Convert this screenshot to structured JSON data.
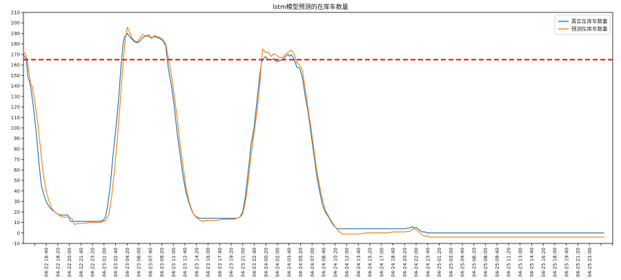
{
  "chart_data": {
    "type": "line",
    "title": "lstm模型预测的在库车数量",
    "xlabel": "",
    "ylabel": "",
    "ylim": [
      -10,
      210
    ],
    "yticks": [
      -10,
      0,
      10,
      20,
      30,
      40,
      50,
      60,
      70,
      80,
      90,
      100,
      110,
      120,
      130,
      140,
      150,
      160,
      170,
      180,
      190,
      200,
      210
    ],
    "x_tick_labels": [
      "04-22 16:40",
      "04-22 18:20",
      "04-22 20:00",
      "04-22 21:40",
      "04-22 23:20",
      "04-23 01:00",
      "04-23 02:40",
      "04-23 04:20",
      "04-23 06:00",
      "04-23 07:40",
      "04-23 09:20",
      "04-23 11:00",
      "04-23 12:40",
      "04-23 14:20",
      "04-23 16:00",
      "04-23 17:40",
      "04-23 19:20",
      "04-23 21:00",
      "04-23 22:40",
      "04-24 00:20",
      "04-24 02:00",
      "04-24 03:40",
      "04-24 05:20",
      "04-24 07:00",
      "04-24 08:40",
      "04-24 10:20",
      "04-24 12:00",
      "04-24 13:40",
      "04-24 15:20",
      "04-24 17:00",
      "04-24 18:40",
      "04-24 20:20",
      "04-24 22:00",
      "04-24 23:40",
      "04-25 01:20",
      "04-25 03:00",
      "04-25 04:40",
      "04-25 06:20",
      "04-25 08:00",
      "04-25 09:40",
      "04-25 11:20",
      "04-25 13:00",
      "04-25 14:40",
      "04-25 16:20",
      "04-25 18:00",
      "04-25 19:40",
      "04-25 21:20",
      "04-25 23:00"
    ],
    "reference_line": {
      "y": 165,
      "color": "#ff0000",
      "style": "dashed"
    },
    "legend": {
      "placement": "top-right",
      "entries": [
        "真实在库车数量",
        "预测在库车数量"
      ]
    },
    "grid": false,
    "series": [
      {
        "name": "真实在库车数量",
        "color": "#1f77b4",
        "points": [
          [
            0,
            170
          ],
          [
            1,
            165
          ],
          [
            1.6,
            148
          ],
          [
            2,
            145
          ],
          [
            2.5,
            140
          ],
          [
            3.5,
            120
          ],
          [
            4.5,
            95
          ],
          [
            5.5,
            65
          ],
          [
            6.3,
            45
          ],
          [
            7,
            38
          ],
          [
            8,
            30
          ],
          [
            9,
            25
          ],
          [
            10,
            22
          ],
          [
            11,
            20
          ],
          [
            12,
            18
          ],
          [
            13,
            17
          ],
          [
            14,
            17
          ],
          [
            15,
            17
          ],
          [
            15.6,
            17
          ],
          [
            16,
            15
          ],
          [
            16.5,
            11
          ],
          [
            17,
            11
          ],
          [
            19,
            11
          ],
          [
            21,
            11
          ],
          [
            23,
            11
          ],
          [
            25,
            11
          ],
          [
            27,
            11
          ],
          [
            28,
            12
          ],
          [
            28.8,
            15
          ],
          [
            29.5,
            25
          ],
          [
            30.5,
            45
          ],
          [
            31.5,
            75
          ],
          [
            32.5,
            100
          ],
          [
            33.5,
            130
          ],
          [
            34.3,
            160
          ],
          [
            35,
            180
          ],
          [
            35.5,
            187
          ],
          [
            36,
            188
          ],
          [
            36.5,
            190
          ],
          [
            37,
            188
          ],
          [
            38,
            185
          ],
          [
            39,
            182
          ],
          [
            40,
            181
          ],
          [
            41,
            183
          ],
          [
            42,
            186
          ],
          [
            43,
            188
          ],
          [
            44,
            187
          ],
          [
            45,
            186
          ],
          [
            46,
            187
          ],
          [
            47,
            186
          ],
          [
            48,
            185
          ],
          [
            49,
            183
          ],
          [
            50,
            178
          ],
          [
            50.5,
            165
          ],
          [
            51,
            155
          ],
          [
            52,
            140
          ],
          [
            53,
            120
          ],
          [
            54,
            95
          ],
          [
            55,
            75
          ],
          [
            56,
            55
          ],
          [
            57,
            40
          ],
          [
            58,
            30
          ],
          [
            59,
            22
          ],
          [
            60,
            17
          ],
          [
            61,
            15
          ],
          [
            62,
            14
          ],
          [
            64,
            14
          ],
          [
            66,
            14
          ],
          [
            68,
            14
          ],
          [
            70,
            14
          ],
          [
            72,
            14
          ],
          [
            74,
            14
          ],
          [
            75,
            14
          ],
          [
            76,
            15
          ],
          [
            77,
            20
          ],
          [
            78,
            35
          ],
          [
            79,
            60
          ],
          [
            80,
            85
          ],
          [
            81,
            100
          ],
          [
            82,
            125
          ],
          [
            83,
            150
          ],
          [
            83.6,
            162
          ],
          [
            84,
            165
          ],
          [
            85,
            168
          ],
          [
            86,
            165
          ],
          [
            87,
            165
          ],
          [
            88,
            166
          ],
          [
            89,
            163
          ],
          [
            90,
            164
          ],
          [
            91,
            165
          ],
          [
            92,
            168
          ],
          [
            93,
            170
          ],
          [
            93.5,
            168
          ],
          [
            94,
            170
          ],
          [
            94.5,
            168
          ],
          [
            95,
            166
          ],
          [
            96,
            158
          ],
          [
            97,
            157
          ],
          [
            98,
            148
          ],
          [
            99,
            130
          ],
          [
            100,
            115
          ],
          [
            101,
            95
          ],
          [
            102,
            75
          ],
          [
            103,
            55
          ],
          [
            104,
            40
          ],
          [
            105,
            27
          ],
          [
            106,
            20
          ],
          [
            107,
            16
          ],
          [
            108,
            11
          ],
          [
            109,
            7
          ],
          [
            109.8,
            5
          ],
          [
            110,
            4
          ],
          [
            112,
            4
          ],
          [
            114,
            4
          ],
          [
            116,
            4
          ],
          [
            118,
            4
          ],
          [
            120,
            4
          ],
          [
            122,
            4
          ],
          [
            124,
            4
          ],
          [
            126,
            4
          ],
          [
            128,
            4
          ],
          [
            130,
            4
          ],
          [
            132,
            4
          ],
          [
            134,
            4
          ],
          [
            136,
            5
          ],
          [
            136.5,
            6
          ],
          [
            137,
            5
          ],
          [
            138,
            5
          ],
          [
            139,
            3
          ],
          [
            140,
            1
          ],
          [
            141,
            1
          ],
          [
            142,
            0
          ],
          [
            144,
            0
          ],
          [
            148,
            0
          ],
          [
            152,
            0
          ],
          [
            156,
            0
          ],
          [
            160,
            0
          ],
          [
            164,
            0
          ],
          [
            168,
            0
          ],
          [
            172,
            0
          ],
          [
            176,
            0
          ],
          [
            180,
            0
          ],
          [
            184,
            0
          ],
          [
            188,
            0
          ],
          [
            192,
            0
          ],
          [
            196,
            0
          ],
          [
            200,
            0
          ],
          [
            204,
            0
          ]
        ]
      },
      {
        "name": "预测在库车数量",
        "color": "#ff7f0e",
        "points": [
          [
            0,
            173
          ],
          [
            1,
            169
          ],
          [
            2,
            152
          ],
          [
            2.5,
            142
          ],
          [
            3,
            140
          ],
          [
            4,
            125
          ],
          [
            5,
            105
          ],
          [
            6,
            80
          ],
          [
            7,
            55
          ],
          [
            8,
            40
          ],
          [
            9,
            30
          ],
          [
            10,
            23
          ],
          [
            11,
            20
          ],
          [
            12,
            18
          ],
          [
            13,
            16
          ],
          [
            14,
            15
          ],
          [
            15,
            15
          ],
          [
            16,
            15
          ],
          [
            17,
            14
          ],
          [
            17.5,
            10
          ],
          [
            18,
            8
          ],
          [
            19,
            9
          ],
          [
            21,
            9
          ],
          [
            23,
            10
          ],
          [
            25,
            10
          ],
          [
            27,
            10
          ],
          [
            28,
            11
          ],
          [
            29,
            12
          ],
          [
            30,
            18
          ],
          [
            31,
            35
          ],
          [
            32,
            60
          ],
          [
            33,
            90
          ],
          [
            34,
            125
          ],
          [
            35,
            162
          ],
          [
            35.8,
            185
          ],
          [
            36.5,
            196
          ],
          [
            37,
            193
          ],
          [
            37.5,
            190
          ],
          [
            38,
            186
          ],
          [
            39,
            183
          ],
          [
            40,
            182
          ],
          [
            41,
            186
          ],
          [
            42,
            189
          ],
          [
            43,
            187
          ],
          [
            44,
            189
          ],
          [
            45,
            185
          ],
          [
            46,
            188
          ],
          [
            47,
            187
          ],
          [
            48,
            186
          ],
          [
            49,
            184
          ],
          [
            50,
            180
          ],
          [
            51,
            165
          ],
          [
            52,
            150
          ],
          [
            53,
            130
          ],
          [
            54,
            110
          ],
          [
            55,
            85
          ],
          [
            56,
            65
          ],
          [
            57,
            45
          ],
          [
            58,
            32
          ],
          [
            59,
            23
          ],
          [
            60,
            17
          ],
          [
            61,
            14
          ],
          [
            62,
            12
          ],
          [
            63,
            11
          ],
          [
            64,
            12
          ],
          [
            66,
            12
          ],
          [
            68,
            12
          ],
          [
            70,
            13
          ],
          [
            72,
            13
          ],
          [
            74,
            13
          ],
          [
            75,
            14
          ],
          [
            76,
            15
          ],
          [
            77,
            18
          ],
          [
            78,
            30
          ],
          [
            79,
            50
          ],
          [
            80,
            75
          ],
          [
            81,
            95
          ],
          [
            82,
            115
          ],
          [
            83,
            140
          ],
          [
            83.6,
            163
          ],
          [
            84,
            175
          ],
          [
            85,
            172
          ],
          [
            86,
            172
          ],
          [
            87,
            168
          ],
          [
            88,
            171
          ],
          [
            89,
            169
          ],
          [
            90,
            167
          ],
          [
            91,
            167
          ],
          [
            92,
            170
          ],
          [
            93,
            172
          ],
          [
            94,
            174
          ],
          [
            95,
            171
          ],
          [
            96,
            162
          ],
          [
            97,
            160
          ],
          [
            98,
            155
          ],
          [
            99,
            137
          ],
          [
            100,
            118
          ],
          [
            101,
            100
          ],
          [
            102,
            80
          ],
          [
            103,
            60
          ],
          [
            104,
            45
          ],
          [
            105,
            32
          ],
          [
            106,
            22
          ],
          [
            107,
            17
          ],
          [
            108,
            12
          ],
          [
            109,
            8
          ],
          [
            110,
            4
          ],
          [
            111,
            1
          ],
          [
            112,
            -1
          ],
          [
            114,
            -1
          ],
          [
            116,
            -1
          ],
          [
            118,
            -1
          ],
          [
            120,
            0
          ],
          [
            122,
            0
          ],
          [
            124,
            0
          ],
          [
            126,
            0
          ],
          [
            128,
            0
          ],
          [
            130,
            1
          ],
          [
            132,
            1
          ],
          [
            134,
            1
          ],
          [
            136,
            2
          ],
          [
            137,
            4
          ],
          [
            138,
            3
          ],
          [
            139,
            1
          ],
          [
            140,
            -2
          ],
          [
            141,
            -3
          ],
          [
            142,
            -3
          ],
          [
            143,
            -4
          ],
          [
            144,
            -4
          ],
          [
            148,
            -4
          ],
          [
            152,
            -4
          ],
          [
            156,
            -4
          ],
          [
            160,
            -4
          ],
          [
            164,
            -4
          ],
          [
            168,
            -4
          ],
          [
            172,
            -4
          ],
          [
            176,
            -4
          ],
          [
            180,
            -4
          ],
          [
            184,
            -4
          ],
          [
            188,
            -4
          ],
          [
            192,
            -4
          ],
          [
            196,
            -4
          ],
          [
            200,
            -4
          ],
          [
            204,
            -4
          ]
        ]
      }
    ]
  }
}
